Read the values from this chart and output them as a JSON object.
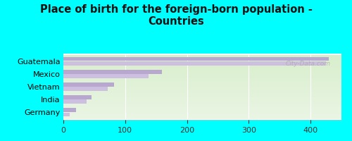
{
  "title": "Place of birth for the foreign-born population -\nCountries",
  "categories": [
    "Guatemala",
    "Mexico",
    "Vietnam",
    "India",
    "Germany"
  ],
  "values1": [
    430,
    160,
    82,
    45,
    20
  ],
  "values2": [
    425,
    138,
    72,
    38,
    10
  ],
  "bar_color1": "#b8a8d0",
  "bar_color2": "#cdbfe0",
  "bg_color": "#00ffff",
  "plot_bg_top": "#eaf5e4",
  "plot_bg_bottom": "#d8eecc",
  "xlim": [
    0,
    450
  ],
  "xticks": [
    0,
    100,
    200,
    300,
    400
  ],
  "watermark": "City-Data.com",
  "title_fontsize": 10.5,
  "tick_fontsize": 8,
  "label_fontsize": 8
}
